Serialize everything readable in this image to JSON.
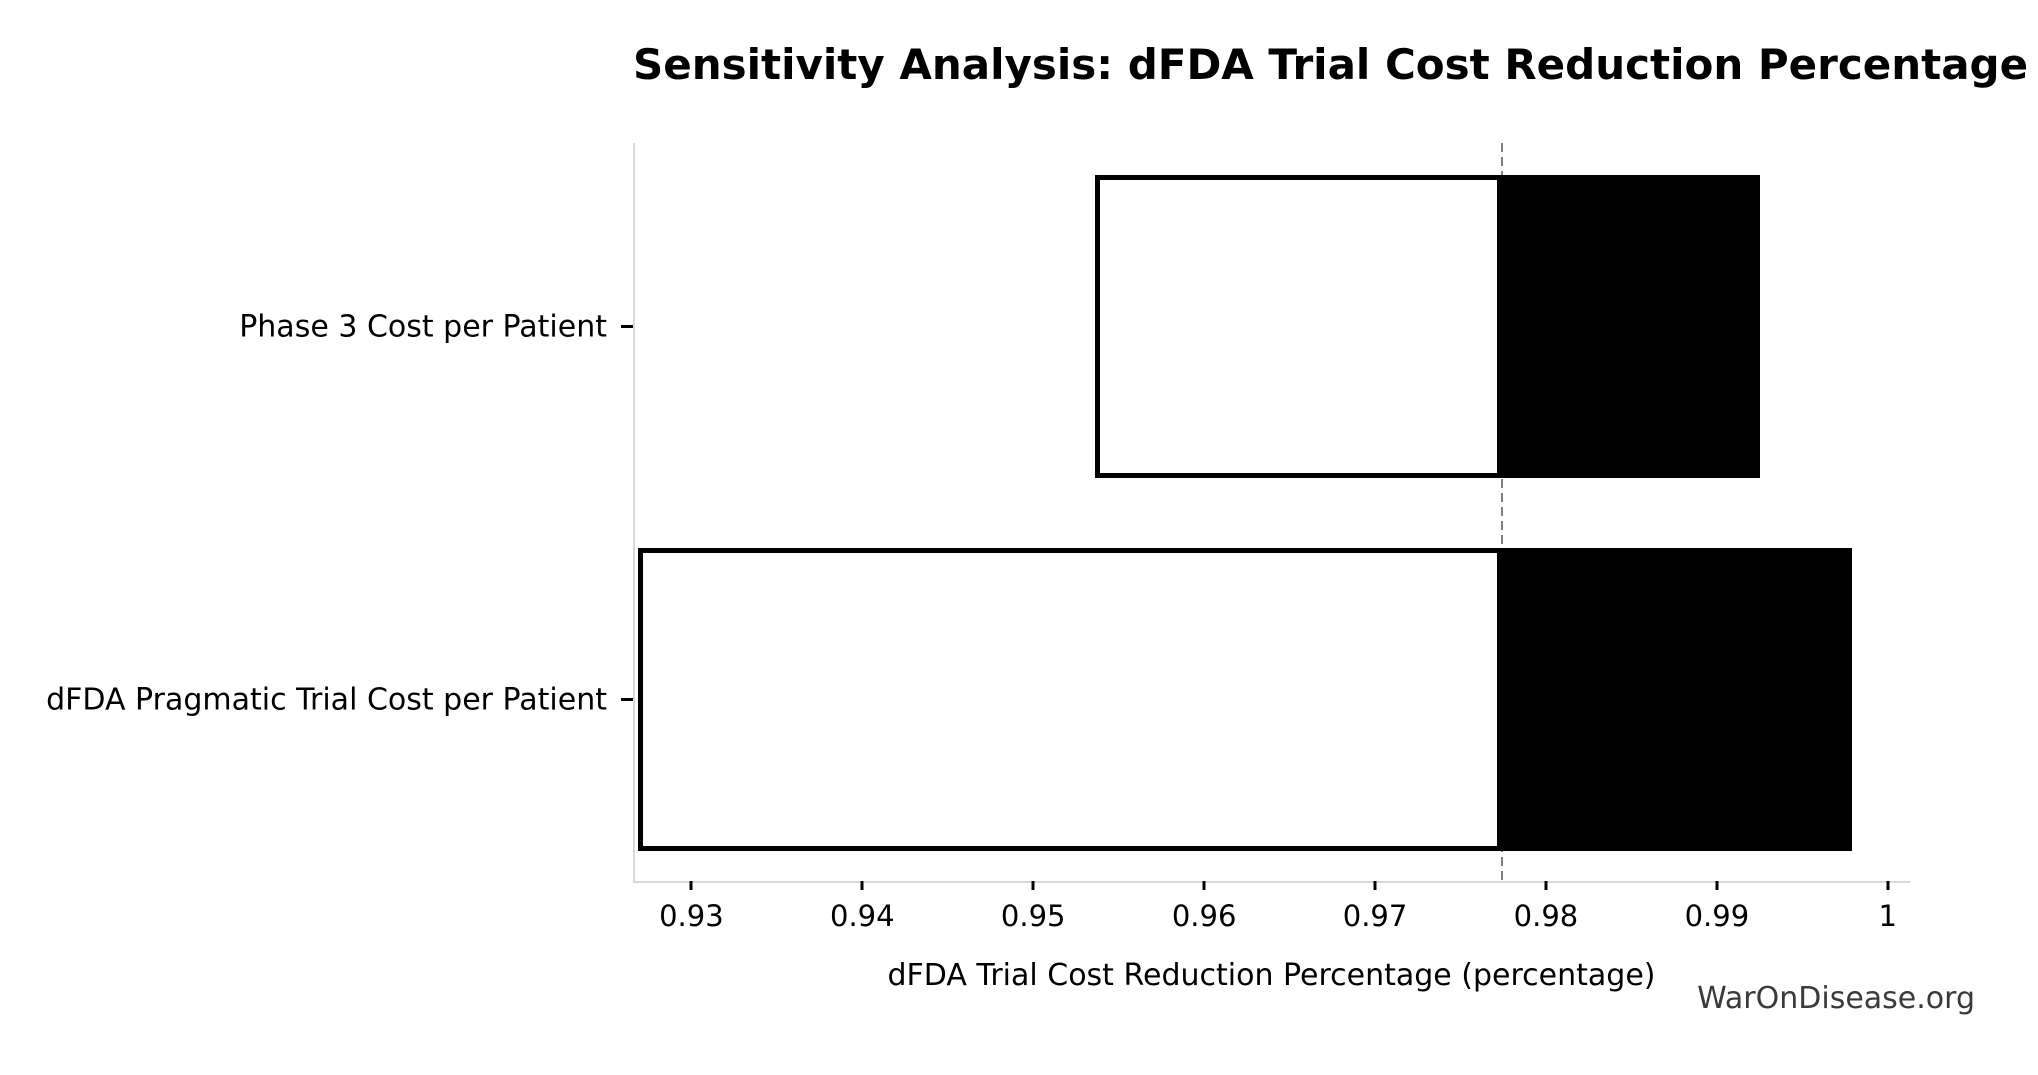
{
  "watermark": "WarOnDisease.org",
  "chart_data": {
    "type": "bar",
    "subtype": "tornado-sensitivity",
    "orientation": "horizontal",
    "title": "Sensitivity Analysis: dFDA Trial Cost Reduction Percentage",
    "xlabel": "dFDA Trial Cost Reduction Percentage (percentage)",
    "ylabel": "",
    "xlim": [
      0.9267,
      1.0013
    ],
    "baseline": 0.9774,
    "grid": false,
    "legend": "none",
    "xticks": [
      {
        "label": "0.93",
        "value": 0.93
      },
      {
        "label": "0.94",
        "value": 0.94
      },
      {
        "label": "0.95",
        "value": 0.95
      },
      {
        "label": "0.96",
        "value": 0.96
      },
      {
        "label": "0.97",
        "value": 0.97
      },
      {
        "label": "0.98",
        "value": 0.98
      },
      {
        "label": "0.99",
        "value": 0.99
      },
      {
        "label": "1",
        "value": 1.0
      }
    ],
    "bars": [
      {
        "label": "Phase 3 Cost per Patient",
        "low": 0.9536,
        "high": 0.9925
      },
      {
        "label": "dFDA Pragmatic Trial Cost per Patient",
        "low": 0.9269,
        "high": 0.9979
      }
    ],
    "colors": {
      "low_segment_fill": "#ffffff",
      "high_segment_fill": "#000000",
      "bar_edge": "#000000",
      "baseline_line": "#7f7f7f",
      "axis_spine": "#d9d9d9",
      "text": "#000000",
      "watermark_text": "#3a3a3a",
      "background": "#ffffff"
    }
  }
}
